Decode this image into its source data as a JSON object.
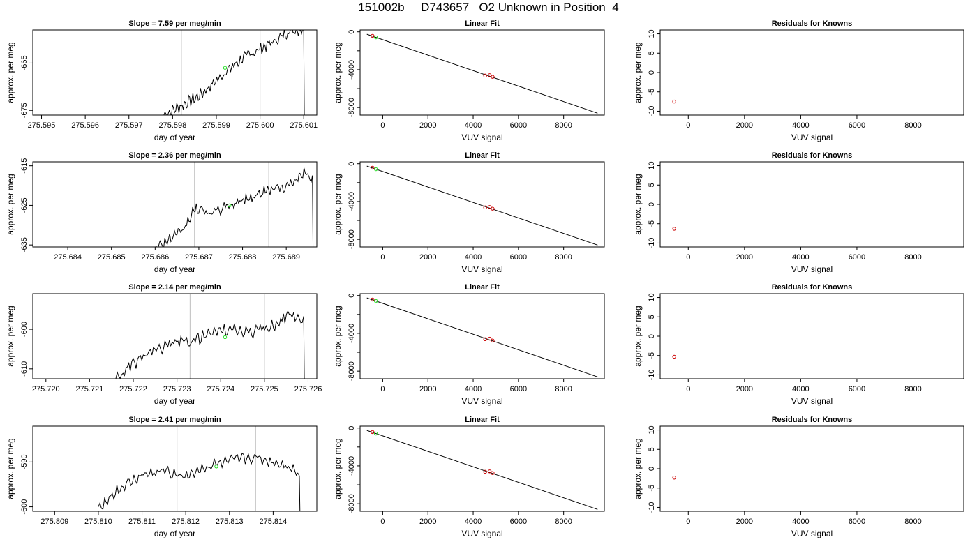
{
  "figure_title": "151002b     D743657   O2 Unknown in Position  4",
  "colors": {
    "trace": "#000000",
    "known_point": "#cc0000",
    "unknown_point": "#22dd22",
    "vline": "#c8c8c8"
  },
  "chart_data": [
    {
      "type": "line",
      "title": "Slope =  7.59  per meg/min",
      "xlabel": "day of year",
      "ylabel": "approx. per meg",
      "xlim": [
        275.5948,
        275.6013
      ],
      "ylim": [
        -676,
        -658
      ],
      "xticks": [
        "275.595",
        "275.596",
        "275.597",
        "275.598",
        "275.599",
        "275.600",
        "275.601"
      ],
      "yticks": [
        "-675",
        "-665"
      ],
      "vlines": [
        275.5982,
        275.6
      ],
      "unknown_point": [
        275.5992,
        -666
      ],
      "trace": {
        "x": [
          275.5978,
          275.5986,
          275.5992,
          275.5996,
          275.6,
          275.6004,
          275.6007,
          275.601
        ],
        "y": [
          -676,
          -672,
          -667,
          -664,
          -662,
          -660,
          -658,
          -658
        ],
        "drop_to": -676
      }
    },
    {
      "type": "scatter",
      "title": "Linear Fit",
      "xlabel": "VUV signal",
      "ylabel": "approx. per meg",
      "xlim": [
        -1000,
        9800
      ],
      "ylim": [
        -8800,
        200
      ],
      "xticks": [
        "0",
        "2000",
        "4000",
        "6000",
        "8000"
      ],
      "yticks": [
        "0",
        "-4000",
        "-8000"
      ],
      "fit_line": {
        "x": [
          -700,
          9500
        ],
        "y": [
          -250,
          -8600
        ]
      },
      "known_points": {
        "x": [
          -450,
          4530,
          4730,
          4860
        ],
        "y": [
          -420,
          -4620,
          -4580,
          -4760
        ]
      },
      "unknown_points": {
        "x": [
          -300
        ],
        "y": [
          -580
        ]
      }
    },
    {
      "type": "scatter",
      "title": "Residuals for Knowns",
      "xlabel": "VUV signal",
      "ylabel": "approx. per meg",
      "xlim": [
        -1000,
        9800
      ],
      "ylim": [
        -11,
        11
      ],
      "xticks": [
        "0",
        "2000",
        "4000",
        "6000",
        "8000"
      ],
      "yticks": [
        "10",
        "5",
        "0",
        "-5",
        "-10"
      ],
      "known_points": {
        "x": [
          -500
        ],
        "y": [
          -7.5
        ]
      }
    },
    {
      "type": "line",
      "title": "Slope =  2.36  per meg/min",
      "xlabel": "day of year",
      "ylabel": "approx. per meg",
      "xlim": [
        275.6832,
        275.6897
      ],
      "ylim": [
        -635.5,
        -614
      ],
      "xticks": [
        "275.684",
        "275.685",
        "275.686",
        "275.687",
        "275.688",
        "275.689"
      ],
      "yticks": [
        "-615",
        "-625",
        "-635"
      ],
      "vlines": [
        275.6869,
        275.6886
      ],
      "unknown_point": [
        275.6877,
        -625
      ],
      "trace": {
        "x": [
          275.686,
          275.6866,
          275.6869,
          275.6873,
          275.6877,
          275.6882,
          275.6886,
          275.6891,
          275.6894,
          275.6896
        ],
        "y": [
          -635.5,
          -632,
          -626,
          -627,
          -625,
          -623,
          -621,
          -620,
          -617,
          -618
        ],
        "drop_to": -635.5
      }
    },
    {
      "type": "scatter",
      "title": "Linear Fit",
      "xlabel": "VUV signal",
      "ylabel": "approx. per meg",
      "xlim": [
        -1000,
        9800
      ],
      "ylim": [
        -8800,
        200
      ],
      "xticks": [
        "0",
        "2000",
        "4000",
        "6000",
        "8000"
      ],
      "yticks": [
        "0",
        "-4000",
        "-8000"
      ],
      "fit_line": {
        "x": [
          -700,
          9500
        ],
        "y": [
          -250,
          -8600
        ]
      },
      "known_points": {
        "x": [
          -450,
          4530,
          4730,
          4860
        ],
        "y": [
          -420,
          -4620,
          -4580,
          -4760
        ]
      },
      "unknown_points": {
        "x": [
          -300
        ],
        "y": [
          -580
        ]
      }
    },
    {
      "type": "scatter",
      "title": "Residuals for Knowns",
      "xlabel": "VUV signal",
      "ylabel": "approx. per meg",
      "xlim": [
        -1000,
        9800
      ],
      "ylim": [
        -11,
        11
      ],
      "xticks": [
        "0",
        "2000",
        "4000",
        "6000",
        "8000"
      ],
      "yticks": [
        "10",
        "5",
        "0",
        "-5",
        "-10"
      ],
      "known_points": {
        "x": [
          -500
        ],
        "y": [
          -6.3
        ]
      }
    },
    {
      "type": "line",
      "title": "Slope =  2.14  per meg/min",
      "xlabel": "day of year",
      "ylabel": "approx. per meg",
      "xlim": [
        275.7197,
        275.7262
      ],
      "ylim": [
        -612.5,
        -591
      ],
      "xticks": [
        "275.720",
        "275.721",
        "275.722",
        "275.723",
        "275.724",
        "275.725",
        "275.726"
      ],
      "yticks": [
        "-600",
        "-610"
      ],
      "vlines": [
        275.7233,
        275.725
      ],
      "unknown_point": [
        275.7241,
        -602
      ],
      "trace": {
        "x": [
          275.7216,
          275.7222,
          275.7228,
          275.7233,
          275.7238,
          275.7242,
          275.7247,
          275.7252,
          275.7256,
          275.7259
        ],
        "y": [
          -612.5,
          -607,
          -604,
          -603,
          -601,
          -600,
          -601,
          -599,
          -596,
          -598
        ],
        "drop_to": -612.5
      }
    },
    {
      "type": "scatter",
      "title": "Linear Fit",
      "xlabel": "VUV signal",
      "ylabel": "approx. per meg",
      "xlim": [
        -1000,
        9800
      ],
      "ylim": [
        -8800,
        200
      ],
      "xticks": [
        "0",
        "2000",
        "4000",
        "6000",
        "8000"
      ],
      "yticks": [
        "0",
        "-4000",
        "-8000"
      ],
      "fit_line": {
        "x": [
          -700,
          9500
        ],
        "y": [
          -250,
          -8600
        ]
      },
      "known_points": {
        "x": [
          -450,
          4530,
          4730,
          4860
        ],
        "y": [
          -420,
          -4620,
          -4560,
          -4760
        ]
      },
      "unknown_points": {
        "x": [
          -300
        ],
        "y": [
          -580
        ]
      }
    },
    {
      "type": "scatter",
      "title": "Residuals for Knowns",
      "xlabel": "VUV signal",
      "ylabel": "approx. per meg",
      "xlim": [
        -1000,
        9800
      ],
      "ylim": [
        -11,
        11
      ],
      "xticks": [
        "0",
        "2000",
        "4000",
        "6000",
        "8000"
      ],
      "yticks": [
        "10",
        "5",
        "0",
        "-5",
        "-10"
      ],
      "known_points": {
        "x": [
          -500
        ],
        "y": [
          -5.3
        ]
      }
    },
    {
      "type": "line",
      "title": "Slope =  2.41  per meg/min",
      "xlabel": "day of year",
      "ylabel": "approx. per meg",
      "xlim": [
        275.8085,
        275.815
      ],
      "ylim": [
        -601,
        -582
      ],
      "xticks": [
        "275.809",
        "275.810",
        "275.811",
        "275.812",
        "275.813",
        "275.814"
      ],
      "yticks": [
        "-590",
        "-600"
      ],
      "vlines": [
        275.8118,
        275.8136
      ],
      "unknown_point": [
        275.8127,
        -591
      ],
      "trace": {
        "x": [
          275.81,
          275.8105,
          275.811,
          275.8115,
          275.812,
          275.8125,
          275.813,
          275.8135,
          275.814,
          275.8144,
          275.8146
        ],
        "y": [
          -600,
          -596,
          -593,
          -592,
          -593,
          -591,
          -590,
          -589,
          -590,
          -591,
          -593
        ],
        "drop_to": -601
      }
    },
    {
      "type": "scatter",
      "title": "Linear Fit",
      "xlabel": "VUV signal",
      "ylabel": "approx. per meg",
      "xlim": [
        -1000,
        9800
      ],
      "ylim": [
        -8800,
        200
      ],
      "xticks": [
        "0",
        "2000",
        "4000",
        "6000",
        "8000"
      ],
      "yticks": [
        "0",
        "-4000",
        "-8000"
      ],
      "fit_line": {
        "x": [
          -700,
          9500
        ],
        "y": [
          -250,
          -8600
        ]
      },
      "known_points": {
        "x": [
          -450,
          4530,
          4730,
          4860
        ],
        "y": [
          -420,
          -4620,
          -4580,
          -4760
        ]
      },
      "unknown_points": {
        "x": [
          -300
        ],
        "y": [
          -580
        ]
      }
    },
    {
      "type": "scatter",
      "title": "Residuals for Knowns",
      "xlabel": "VUV signal",
      "ylabel": "approx. per meg",
      "xlim": [
        -1000,
        9800
      ],
      "ylim": [
        -11,
        11
      ],
      "xticks": [
        "0",
        "2000",
        "4000",
        "6000",
        "8000"
      ],
      "yticks": [
        "10",
        "5",
        "0",
        "-5",
        "-10"
      ],
      "known_points": {
        "x": [
          -500
        ],
        "y": [
          -2.3
        ]
      }
    }
  ]
}
